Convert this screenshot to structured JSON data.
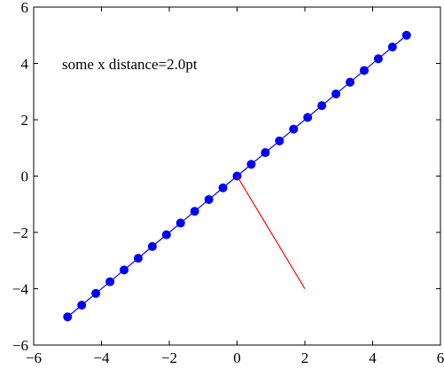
{
  "chart_data": {
    "type": "line",
    "annotation": "some x distance=2.0pt",
    "xlim": [
      -6,
      6
    ],
    "ylim": [
      -6,
      6
    ],
    "xticks": [
      {
        "value": -6,
        "label": "−6"
      },
      {
        "value": -4,
        "label": "−4"
      },
      {
        "value": -2,
        "label": "−2"
      },
      0,
      2,
      4,
      6
    ],
    "yticks": [
      {
        "value": -6,
        "label": "−6"
      },
      {
        "value": -4,
        "label": "−4"
      },
      {
        "value": -2,
        "label": "−2"
      },
      0,
      2,
      4,
      6
    ],
    "series": [
      {
        "color": "#0000ff",
        "marker": "circle",
        "x": [
          -5,
          -4.5833,
          -4.1667,
          -3.75,
          -3.3333,
          -2.9167,
          -2.5,
          -2.0833,
          -1.6667,
          -1.25,
          -0.8333,
          -0.4167,
          0,
          0.4167,
          0.8333,
          1.25,
          1.6667,
          2.0833,
          2.5,
          2.9167,
          3.3333,
          3.75,
          4.1667,
          4.5833,
          5
        ],
        "values": [
          -5,
          -4.5833,
          -4.1667,
          -3.75,
          -3.3333,
          -2.9167,
          -2.5,
          -2.0833,
          -1.6667,
          -1.25,
          -0.8333,
          -0.4167,
          0,
          0.4167,
          0.8333,
          1.25,
          1.6667,
          2.0833,
          2.5,
          2.9167,
          3.3333,
          3.75,
          4.1667,
          4.5833,
          5
        ]
      },
      {
        "color": "#ff0000",
        "marker": "none",
        "x": [
          0,
          2
        ],
        "values": [
          0,
          -4
        ]
      }
    ]
  }
}
